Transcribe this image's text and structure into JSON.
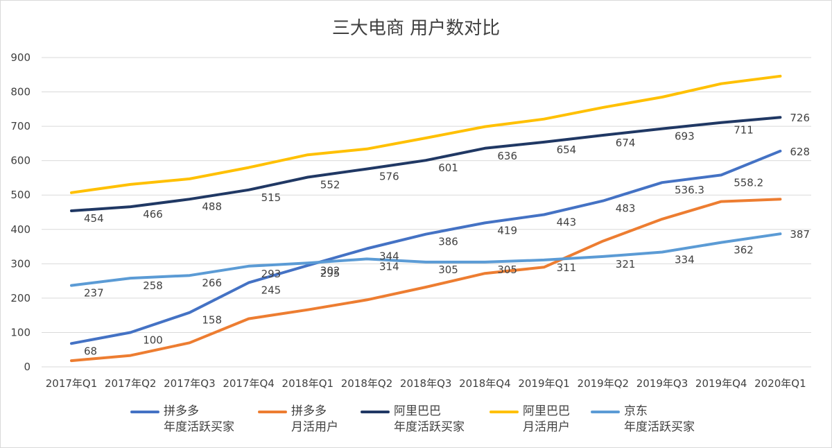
{
  "chart_data": {
    "type": "line",
    "title": "三大电商 用户数对比",
    "xlabel": "",
    "ylabel": "",
    "ylim": [
      0,
      900
    ],
    "yticks": [
      0,
      100,
      200,
      300,
      400,
      500,
      600,
      700,
      800,
      900
    ],
    "grid": true,
    "legend_position": "bottom",
    "categories": [
      "2017年Q1",
      "2017年Q2",
      "2017年Q3",
      "2017年Q4",
      "2018年Q1",
      "2018年Q2",
      "2018年Q3",
      "2018年Q4",
      "2019年Q1",
      "2019年Q2",
      "2019年Q3",
      "2019年Q4",
      "2020年Q1"
    ],
    "series": [
      {
        "name_lines": [
          "拼多多",
          "年度活跃买家"
        ],
        "color": "#4472C4",
        "values": [
          68,
          100,
          158,
          245,
          295,
          344,
          386,
          419,
          443,
          483,
          536.3,
          558.2,
          628
        ],
        "labels": [
          "68",
          "100",
          "158",
          "245",
          "295",
          "344",
          "386",
          "419",
          "443",
          "483",
          "536.3",
          "558.2",
          "628"
        ]
      },
      {
        "name_lines": [
          "拼多多",
          "月活用户"
        ],
        "color": "#ED7D31",
        "values": [
          18,
          33,
          70,
          140,
          166,
          195,
          232,
          272,
          290,
          366,
          430,
          481,
          488
        ],
        "labels": []
      },
      {
        "name_lines": [
          "阿里巴巴",
          "年度活跃买家"
        ],
        "color": "#203864",
        "values": [
          454,
          466,
          488,
          515,
          552,
          576,
          601,
          636,
          654,
          674,
          693,
          711,
          726
        ],
        "labels": [
          "454",
          "466",
          "488",
          "515",
          "552",
          "576",
          "601",
          "636",
          "654",
          "674",
          "693",
          "711",
          "726"
        ]
      },
      {
        "name_lines": [
          "阿里巴巴",
          "月活用户"
        ],
        "color": "#FFC000",
        "values": [
          507,
          531,
          547,
          580,
          617,
          634,
          666,
          699,
          721,
          755,
          785,
          824,
          846
        ],
        "labels": []
      },
      {
        "name_lines": [
          "京东",
          "年度活跃买家"
        ],
        "color": "#5B9BD5",
        "values": [
          237,
          258,
          266,
          293,
          302,
          314,
          305,
          305,
          311,
          321,
          334,
          362,
          387
        ],
        "labels": [
          "237",
          "258",
          "266",
          "293",
          "302",
          "314",
          "305",
          "305",
          "311",
          "321",
          "334",
          "362",
          "387"
        ]
      }
    ]
  }
}
